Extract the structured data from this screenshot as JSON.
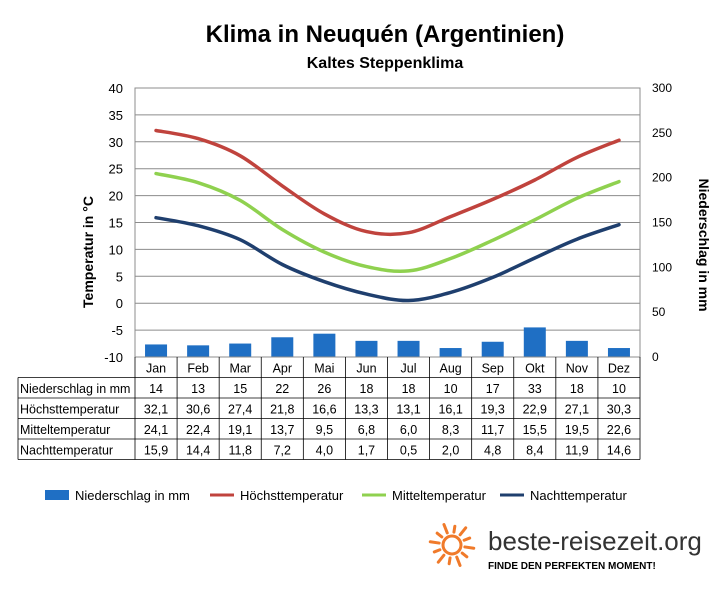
{
  "chart_data": {
    "type": "bar+line",
    "title": "Klima in Neuquén (Argentinien)",
    "subtitle": "Kaltes Steppenklima",
    "ylabel_left": "Temperatur in °C",
    "ylabel_right": "Niederschlag in mm",
    "ylim_left": [
      -10,
      40
    ],
    "yticks_left": [
      40,
      35,
      30,
      25,
      20,
      15,
      10,
      5,
      0,
      -5,
      -10
    ],
    "ylim_right": [
      0,
      300
    ],
    "yticks_right": [
      300,
      250,
      200,
      150,
      100,
      50,
      0
    ],
    "grid": true,
    "legend_position": "bottom",
    "categories": [
      "Jan",
      "Feb",
      "Mar",
      "Apr",
      "Mai",
      "Jun",
      "Jul",
      "Aug",
      "Sep",
      "Okt",
      "Nov",
      "Dez"
    ],
    "series": [
      {
        "name": "Niederschlag in mm",
        "table_label": "Niederschlag in mm",
        "kind": "bar",
        "axis": "right",
        "color": "#1f6fc4",
        "values": [
          14,
          13,
          15,
          22,
          26,
          18,
          18,
          10,
          17,
          33,
          18,
          10
        ],
        "display": [
          "14",
          "13",
          "15",
          "22",
          "26",
          "18",
          "18",
          "10",
          "17",
          "33",
          "18",
          "10"
        ]
      },
      {
        "name": "Höchsttemperatur",
        "table_label": "Höchsttemperatur",
        "kind": "line",
        "axis": "left",
        "color": "#c0433d",
        "values": [
          32.1,
          30.6,
          27.4,
          21.8,
          16.6,
          13.3,
          13.1,
          16.1,
          19.3,
          22.9,
          27.1,
          30.3
        ],
        "display": [
          "32,1",
          "30,6",
          "27,4",
          "21,8",
          "16,6",
          "13,3",
          "13,1",
          "16,1",
          "19,3",
          "22,9",
          "27,1",
          "30,3"
        ]
      },
      {
        "name": "Mitteltemperatur",
        "table_label": "Mitteltemperatur",
        "kind": "line",
        "axis": "left",
        "color": "#8fd14f",
        "values": [
          24.1,
          22.4,
          19.1,
          13.7,
          9.5,
          6.8,
          6.0,
          8.3,
          11.7,
          15.5,
          19.5,
          22.6
        ],
        "display": [
          "24,1",
          "22,4",
          "19,1",
          "13,7",
          "9,5",
          "6,8",
          "6,0",
          "8,3",
          "11,7",
          "15,5",
          "19,5",
          "22,6"
        ]
      },
      {
        "name": "Nachttemperatur",
        "table_label": "Nachttemperatur",
        "kind": "line",
        "axis": "left",
        "color": "#1f3f6e",
        "values": [
          15.9,
          14.4,
          11.8,
          7.2,
          4.0,
          1.7,
          0.5,
          2.0,
          4.8,
          8.4,
          11.9,
          14.6
        ],
        "display": [
          "15,9",
          "14,4",
          "11,8",
          "7,2",
          "4,0",
          "1,7",
          "0,5",
          "2,0",
          "4,8",
          "8,4",
          "11,9",
          "14,6"
        ]
      }
    ]
  },
  "branding": {
    "site": "beste-reisezeit.org",
    "tagline": "FINDE DEN PERFEKTEN MOMENT!",
    "logo_icon": "sun-icon",
    "logo_color": "#f07a2a"
  }
}
